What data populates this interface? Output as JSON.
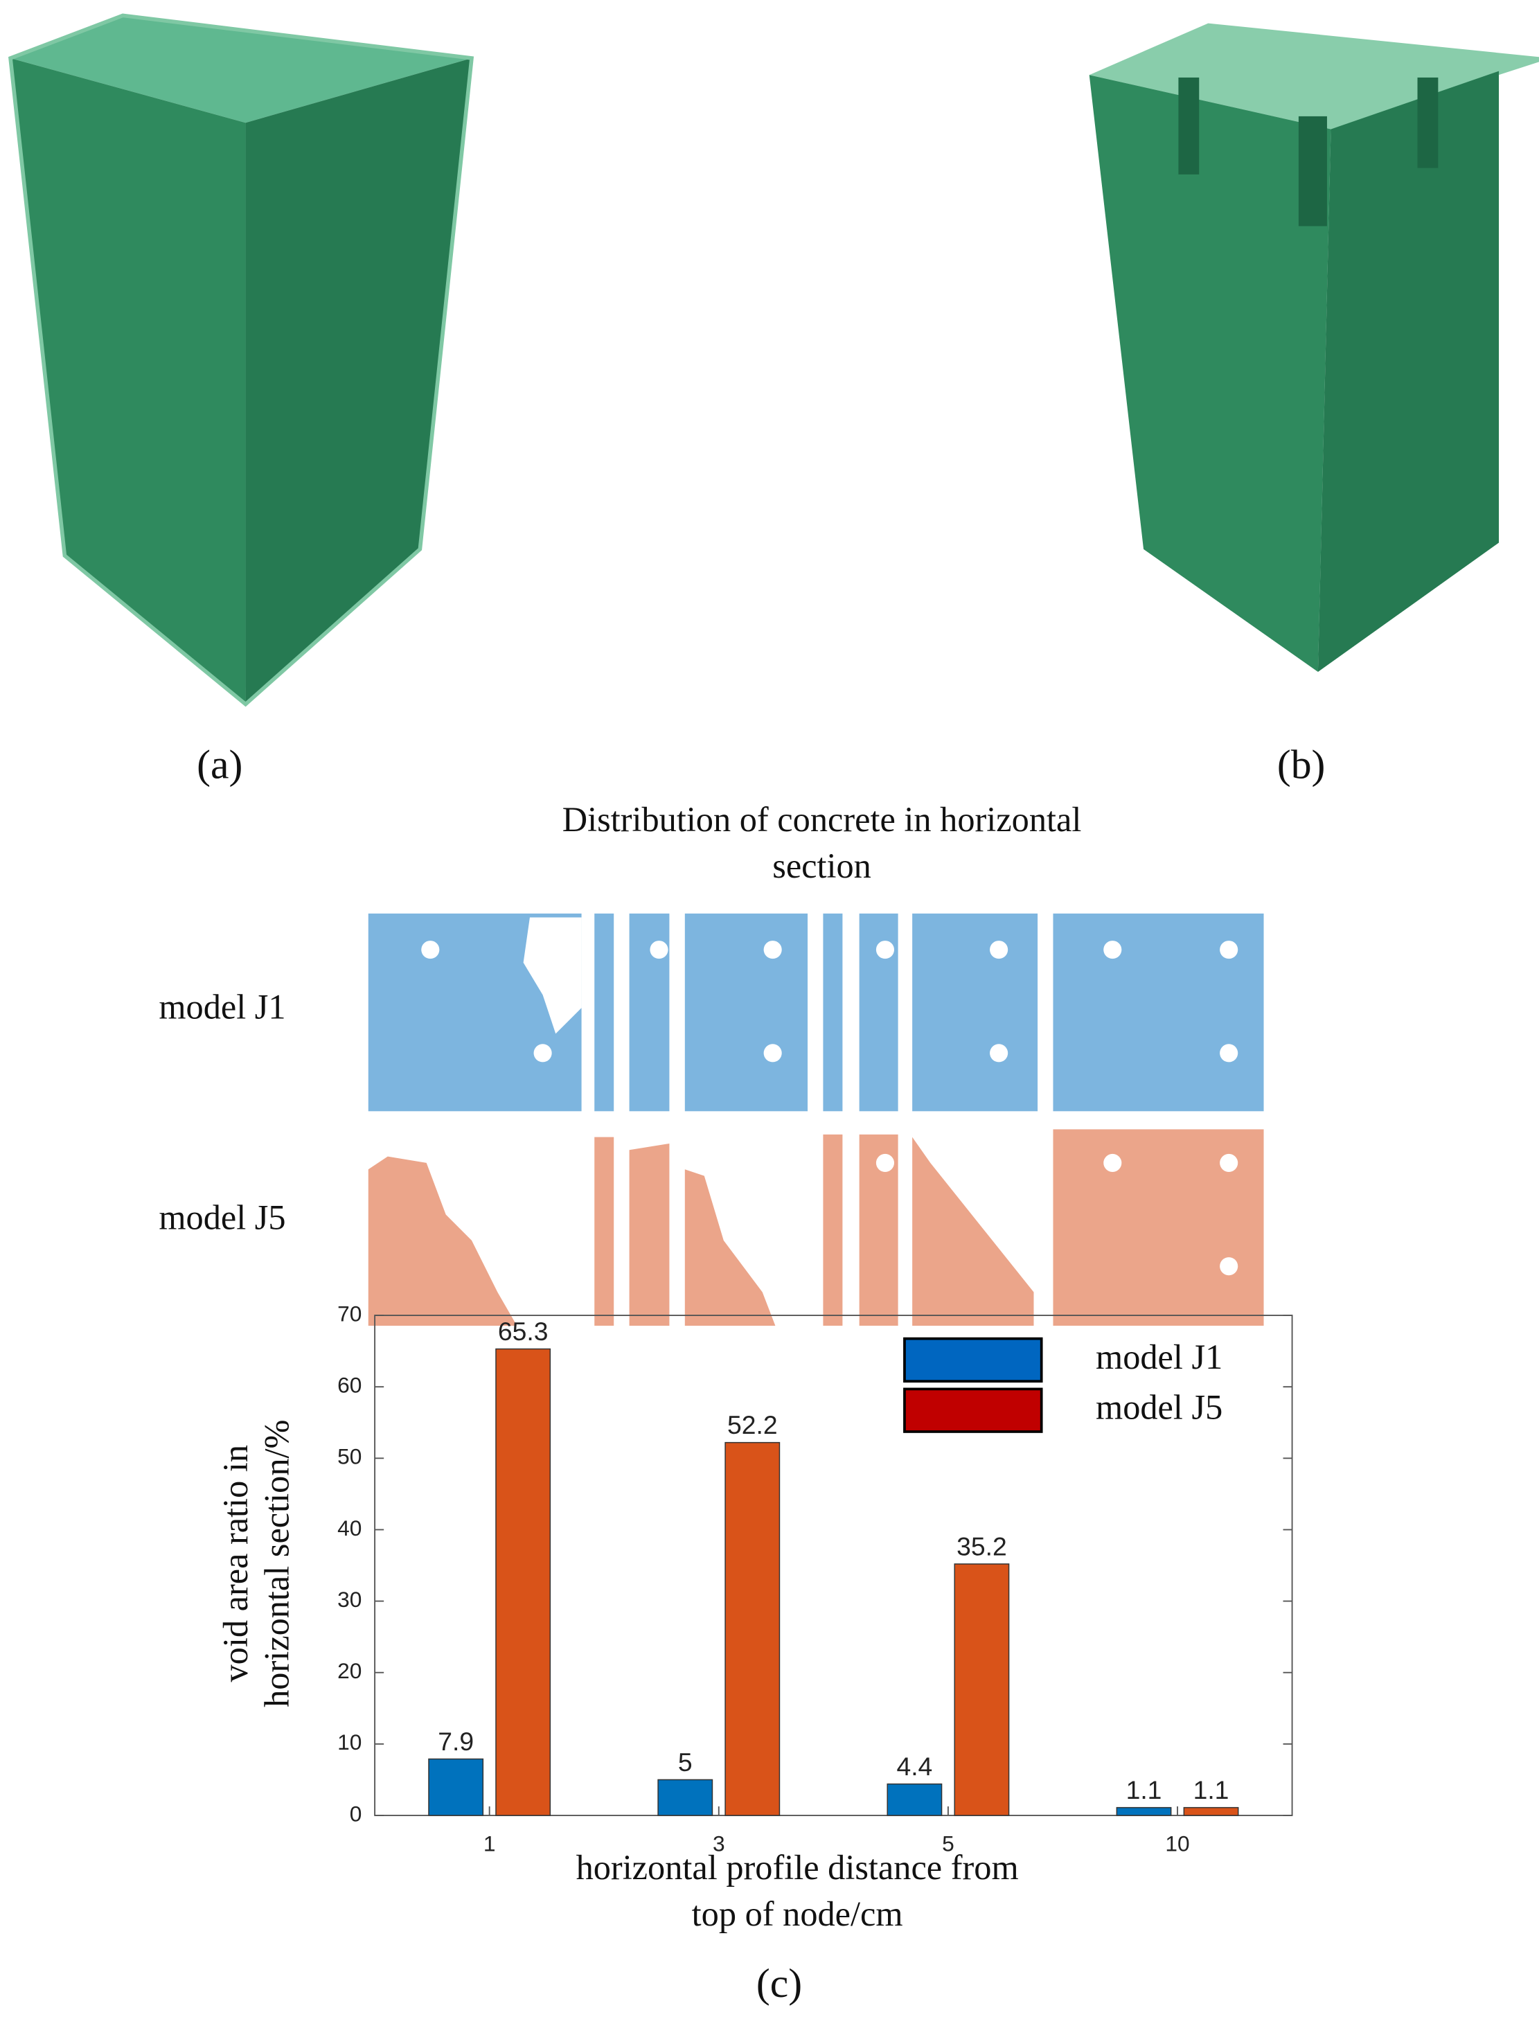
{
  "panels": {
    "a": "(a)",
    "b": "(b)",
    "c": "(c)"
  },
  "sections": {
    "title": [
      "Distribution of concrete in horizontal",
      "section"
    ],
    "rows": [
      "model J1",
      "model J5"
    ]
  },
  "chart_data": {
    "type": "bar",
    "categories": [
      "1",
      "3",
      "5",
      "10"
    ],
    "series": [
      {
        "name": "model J1",
        "color": "#0072bd",
        "legend_color": "#0066c0",
        "values": [
          7.9,
          5,
          4.4,
          1.1
        ]
      },
      {
        "name": "model J5",
        "color": "#d95319",
        "legend_color": "#c00000",
        "values": [
          65.3,
          52.2,
          35.2,
          1.1
        ]
      }
    ],
    "xlabel": [
      "horizontal profile distance from",
      "top of node/cm"
    ],
    "ylabel": [
      "void area ratio in",
      "horizontal section/%"
    ],
    "ylim": [
      0,
      70
    ],
    "yticks": [
      0,
      10,
      20,
      30,
      40,
      50,
      60,
      70
    ],
    "legend": "upper right",
    "grid": false
  }
}
